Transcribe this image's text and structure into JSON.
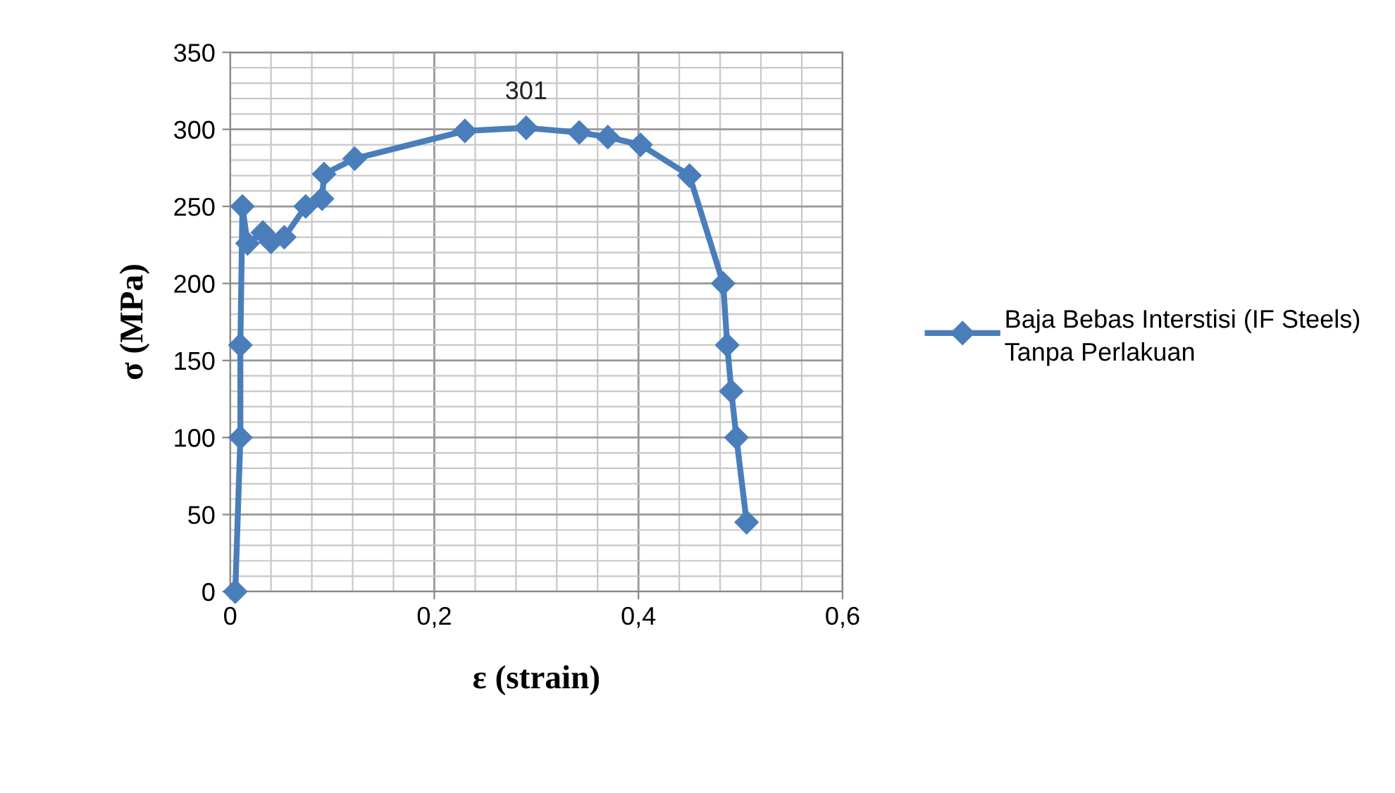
{
  "chart_data": {
    "type": "line",
    "xlabel": "ε (strain)",
    "ylabel": "σ (MPa)",
    "x": [
      0.005,
      0.01,
      0.01,
      0.012,
      0.017,
      0.032,
      0.04,
      0.053,
      0.074,
      0.09,
      0.092,
      0.122,
      0.23,
      0.29,
      0.342,
      0.37,
      0.402,
      0.45,
      0.483,
      0.487,
      0.491,
      0.496,
      0.506
    ],
    "series": [
      {
        "name": "Baja Bebas Interstisi (IF Steels) Tanpa Perlakuan",
        "color": "#4a7ebb",
        "values": [
          0,
          100,
          160,
          250,
          226,
          233,
          227,
          230,
          250,
          255,
          271,
          281,
          299,
          301,
          298,
          295,
          290,
          270,
          200,
          160,
          130,
          100,
          45
        ]
      }
    ],
    "annotations": [
      {
        "text": "301",
        "x": 0.29,
        "y": 301
      }
    ],
    "xlim": [
      0,
      0.6
    ],
    "xticks": [
      0,
      {
        "value": 0.2,
        "label": "0,2"
      },
      {
        "value": 0.4,
        "label": "0,4"
      },
      {
        "value": 0.6,
        "label": "0,6"
      }
    ],
    "ylim": [
      0,
      350
    ],
    "yticks": [
      0,
      50,
      100,
      150,
      200,
      250,
      300,
      350
    ],
    "grid": true,
    "legend": "right",
    "marker": "diamond",
    "line_style": "solid"
  }
}
